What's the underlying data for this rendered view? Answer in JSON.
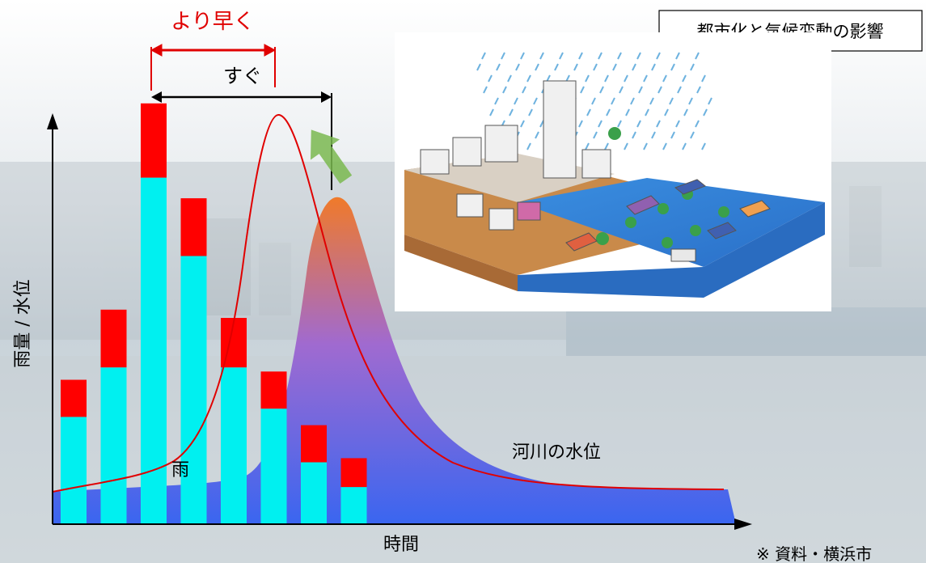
{
  "title_box": "都市化と気候変動の影響",
  "labels": {
    "earlier": "より早く",
    "sooner": "すぐ",
    "y_axis": "雨量 / 水位",
    "x_axis": "時間",
    "rain": "雨",
    "river": "河川の水位",
    "source": "※ 資料・横浜市"
  },
  "colors": {
    "rain_bar": "#00f0f0",
    "rain_bar_top": "#ff0000",
    "river_top": "#f07a2a",
    "river_bottom": "#3a66f0",
    "curve": "#e00000",
    "arrow_red": "#e00000",
    "arrow_black": "#000000",
    "arrow_green": "#7ab850"
  },
  "chart_data": {
    "type": "bar",
    "x_label": "時間",
    "y_label": "雨量 / 水位",
    "rain_bars": [
      {
        "base": 26,
        "top_extra": 9
      },
      {
        "base": 38,
        "top_extra": 14
      },
      {
        "base": 84,
        "top_extra": 18
      },
      {
        "base": 65,
        "top_extra": 14
      },
      {
        "base": 38,
        "top_extra": 12
      },
      {
        "base": 28,
        "top_extra": 9
      },
      {
        "base": 15,
        "top_extra": 9
      },
      {
        "base": 9,
        "top_extra": 7
      }
    ]
  }
}
